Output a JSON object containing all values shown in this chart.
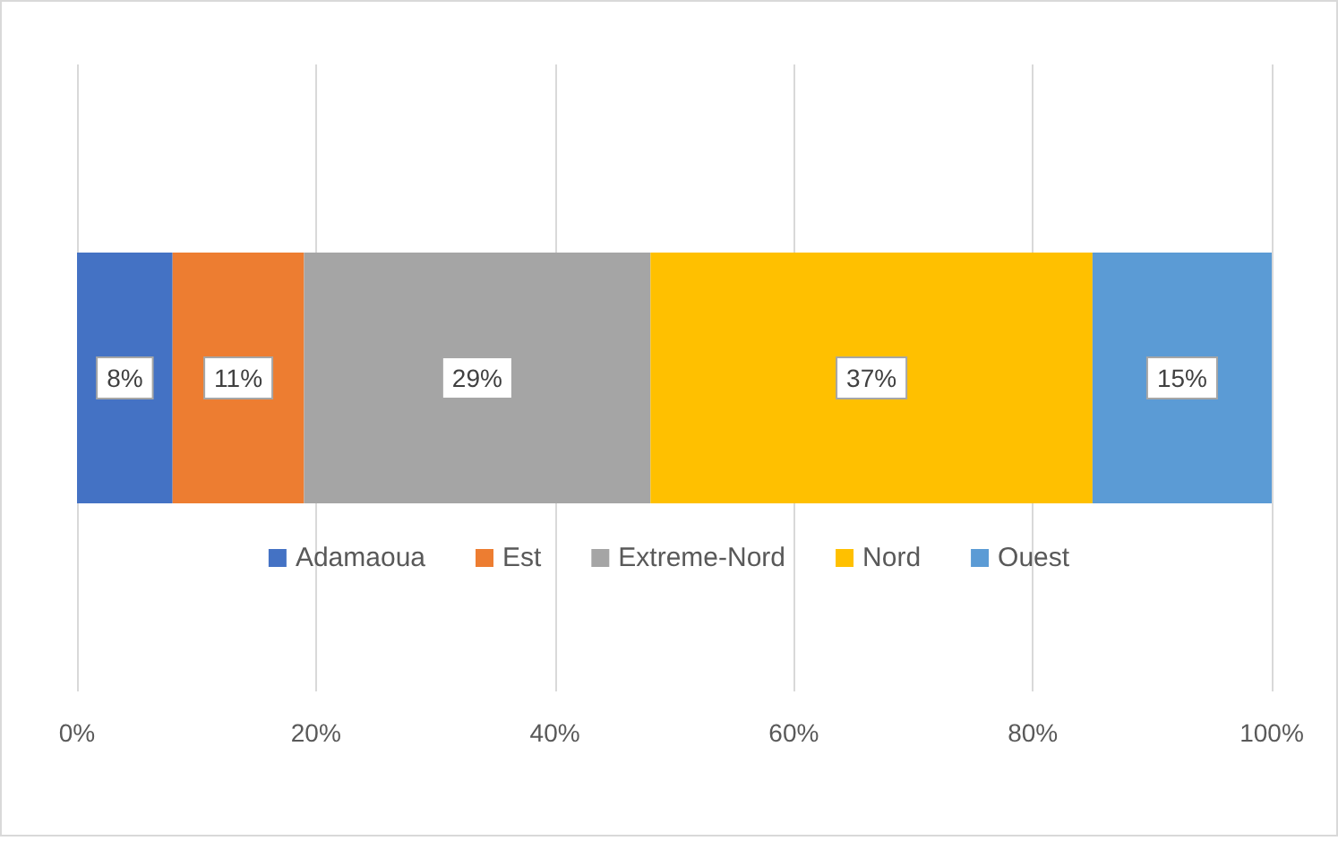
{
  "chart_data": {
    "type": "bar",
    "orientation": "horizontal",
    "stacked": true,
    "categories": [
      null
    ],
    "series": [
      {
        "name": "Adamaoua",
        "color": "#4472c4",
        "values": [
          8
        ],
        "value_labels": [
          "8%"
        ]
      },
      {
        "name": "Est",
        "color": "#ed7d31",
        "values": [
          11
        ],
        "value_labels": [
          "11%"
        ]
      },
      {
        "name": "Extreme-Nord",
        "color": "#a5a5a5",
        "values": [
          29
        ],
        "value_labels": [
          "29%"
        ]
      },
      {
        "name": "Nord",
        "color": "#ffc000",
        "values": [
          37
        ],
        "value_labels": [
          "37%"
        ]
      },
      {
        "name": "Ouest",
        "color": "#5b9bd5",
        "values": [
          15
        ],
        "value_labels": [
          "15%"
        ]
      }
    ],
    "xlim": [
      0,
      100
    ],
    "xticks": [
      {
        "value": 0,
        "label": "0%"
      },
      {
        "value": 20,
        "label": "20%"
      },
      {
        "value": 40,
        "label": "40%"
      },
      {
        "value": 60,
        "label": "60%"
      },
      {
        "value": 80,
        "label": "80%"
      },
      {
        "value": 100,
        "label": "100%"
      }
    ],
    "grid": "x",
    "legend": "bottom"
  }
}
